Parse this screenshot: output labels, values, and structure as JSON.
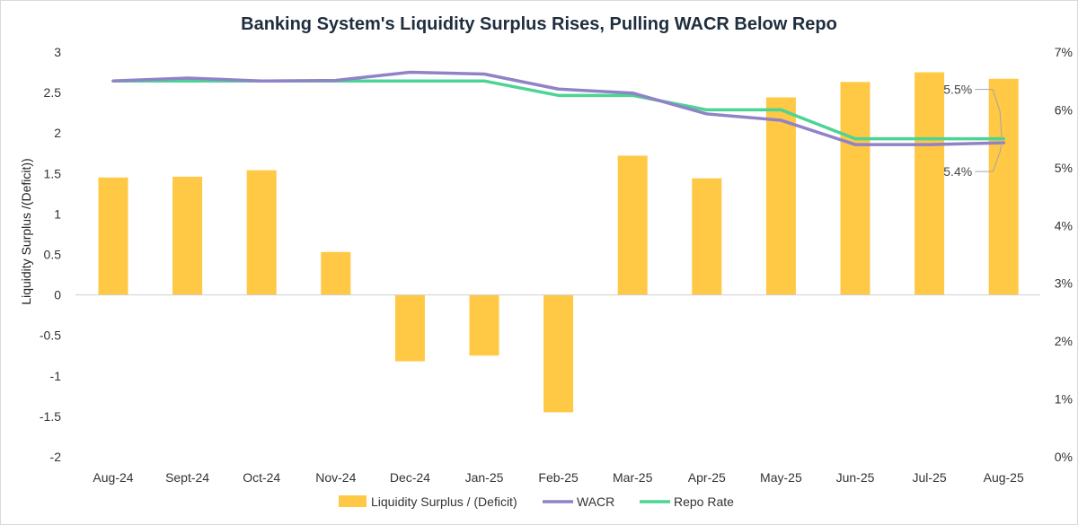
{
  "chart_data": {
    "type": "bar",
    "title": "Banking System's Liquidity Surplus Rises, Pulling WACR Below Repo",
    "ylabel": "Liquidity Surplus /(Deficit))",
    "categories": [
      "Aug-24",
      "Sept-24",
      "Oct-24",
      "Nov-24",
      "Dec-24",
      "Jan-25",
      "Feb-25",
      "Mar-25",
      "Apr-25",
      "May-25",
      "Jun-25",
      "Jul-25",
      "Aug-25"
    ],
    "series": [
      {
        "name": "Liquidity Surplus / (Deficit)",
        "axis": "left",
        "kind": "bar",
        "color": "#FFC845",
        "values": [
          1.45,
          1.46,
          1.54,
          0.53,
          -0.82,
          -0.75,
          -1.45,
          1.72,
          1.44,
          2.44,
          2.63,
          2.75,
          2.67
        ]
      },
      {
        "name": "WACR",
        "axis": "right",
        "kind": "line",
        "color": "#9182C8",
        "values": [
          6.5,
          6.55,
          6.5,
          6.51,
          6.65,
          6.62,
          6.36,
          6.29,
          5.93,
          5.82,
          5.4,
          5.4,
          5.43
        ]
      },
      {
        "name": "Repo Rate",
        "axis": "right",
        "kind": "line",
        "color": "#4CD494",
        "values": [
          6.5,
          6.5,
          6.5,
          6.5,
          6.5,
          6.5,
          6.25,
          6.25,
          6.0,
          6.0,
          5.5,
          5.5,
          5.5
        ]
      }
    ],
    "left_axis": {
      "min": -2,
      "max": 3,
      "step": 0.5,
      "ticks": [
        "3",
        "2.5",
        "2",
        "1.5",
        "1",
        "0.5",
        "0",
        "-0.5",
        "-1",
        "-1.5",
        "-2"
      ]
    },
    "right_axis": {
      "min": 0,
      "max": 7,
      "step": 1,
      "ticks": [
        "7%",
        "6%",
        "5%",
        "4%",
        "3%",
        "2%",
        "1%",
        "0%"
      ]
    },
    "annotations": [
      {
        "text": "5.5%",
        "series": "Repo Rate",
        "category": "Aug-25"
      },
      {
        "text": "5.4%",
        "series": "WACR",
        "category": "Aug-25"
      }
    ],
    "legend": [
      "Liquidity Surplus / (Deficit)",
      "WACR",
      "Repo Rate"
    ],
    "legend_position": "bottom",
    "grid": false
  }
}
